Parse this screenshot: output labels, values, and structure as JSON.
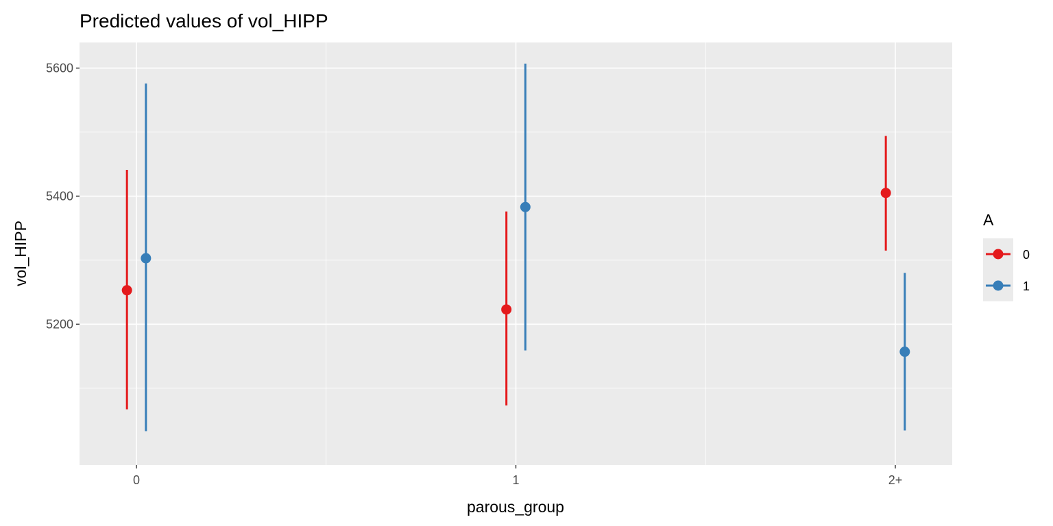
{
  "chart_data": {
    "type": "scatter",
    "title": "Predicted values of vol_HIPP",
    "xlabel": "parous_group",
    "ylabel": "vol_HIPP",
    "categories": [
      "0",
      "1",
      "2+"
    ],
    "yticks": [
      5200,
      5400,
      5600
    ],
    "ylim": [
      4980,
      5640
    ],
    "grid": true,
    "legend": {
      "title": "A",
      "position": "right"
    },
    "series": [
      {
        "name": "0",
        "color": "#e41a1c",
        "points": [
          {
            "x": "0",
            "y": 5253,
            "low": 5067,
            "high": 5441
          },
          {
            "x": "1",
            "y": 5223,
            "low": 5073,
            "high": 5376
          },
          {
            "x": "2+",
            "y": 5405,
            "low": 5315,
            "high": 5494
          }
        ]
      },
      {
        "name": "1",
        "color": "#377eb8",
        "points": [
          {
            "x": "0",
            "y": 5303,
            "low": 5033,
            "high": 5576
          },
          {
            "x": "1",
            "y": 5383,
            "low": 5159,
            "high": 5607
          },
          {
            "x": "2+",
            "y": 5157,
            "low": 5034,
            "high": 5280
          }
        ]
      }
    ]
  }
}
